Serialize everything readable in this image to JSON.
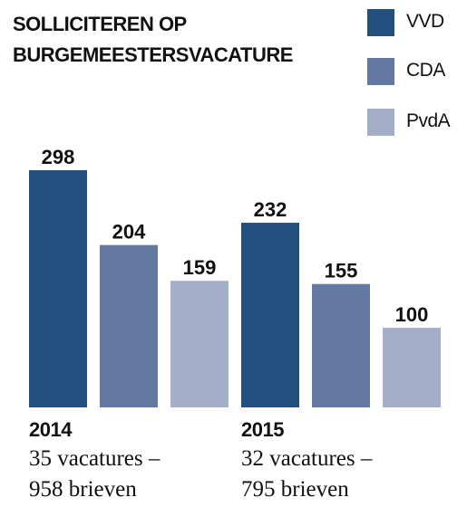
{
  "chart_data": {
    "type": "bar",
    "title_lines": [
      "SOLLICITEREN OP",
      "BURGEMEESTERSVACATURE"
    ],
    "categories": [
      "2014",
      "2015"
    ],
    "series": [
      {
        "name": "VVD",
        "color": "#24507f",
        "values": [
          298,
          232
        ]
      },
      {
        "name": "CDA",
        "color": "#6479a2",
        "values": [
          204,
          155
        ]
      },
      {
        "name": "PvdA",
        "color": "#a4aec9",
        "values": [
          159,
          100
        ]
      }
    ],
    "group_notes": [
      [
        "35 vacatures –",
        "958 brieven"
      ],
      [
        "32 vacatures –",
        "795 brieven"
      ]
    ],
    "ylim": [
      0,
      298
    ],
    "grid": false,
    "legend_position": "top-right"
  }
}
